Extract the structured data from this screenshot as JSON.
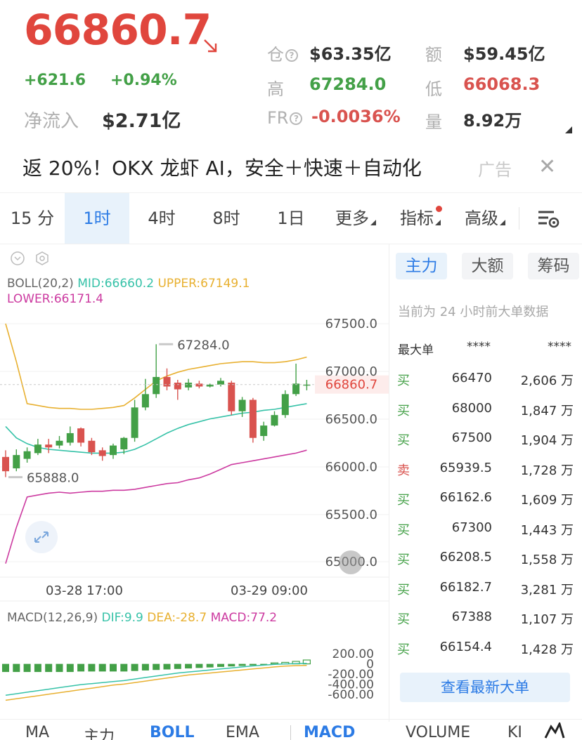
{
  "ticker": {
    "price": "66860.7",
    "change": "+621.6",
    "change_pct": "+0.94%",
    "net_inflow_label": "净流入",
    "net_inflow": "$2.71亿",
    "oi_label": "仓",
    "oi": "$63.35亿",
    "turnover_label": "额",
    "turnover": "$59.45亿",
    "high_label": "高",
    "high": "67284.0",
    "low_label": "低",
    "low": "66068.3",
    "fr_label": "FR",
    "fr": "-0.0036%",
    "vol_label": "量",
    "vol": "8.92万"
  },
  "ad": {
    "text": "返 20%！OKX 龙虾 AI，安全＋快速＋自动化",
    "tag": "广告",
    "close": "✕"
  },
  "interval_tabs": [
    "15 分",
    "1时",
    "4时",
    "8时",
    "1日",
    "更多",
    "指标",
    "高级"
  ],
  "active_interval": "1时",
  "boll_legend": {
    "name": "BOLL(20,2)",
    "mid": "MID:66660.2",
    "upper": "UPPER:67149.1",
    "lower": "LOWER:66171.4"
  },
  "macd_legend": {
    "name": "MACD(12,26,9)",
    "dif": "DIF:9.9",
    "dea": "DEA:-28.7",
    "macd": "MACD:77.2"
  },
  "price_axis": [
    "67500.0",
    "67000.0",
    "66500.0",
    "66000.0",
    "65500.0",
    "65000.0"
  ],
  "current_price_tag": "66860.7",
  "high_marker": "67284.0",
  "low_marker": "65888.0",
  "time_axis": [
    "03-28 17:00",
    "03-29 09:00"
  ],
  "macd_axis": [
    "200.00",
    "0",
    "-200.00",
    "-400.00",
    "-600.00"
  ],
  "colors": {
    "up": "#43a047",
    "down": "#d9534f",
    "mid_line": "#36c2a8",
    "upper_line": "#e8b030",
    "lower_line": "#cc3aa0",
    "accent": "#2c7be5"
  },
  "chart_data": {
    "type": "line",
    "candles": [
      {
        "o": 66100,
        "c": 65950,
        "h": 66170,
        "l": 65888
      },
      {
        "o": 65980,
        "c": 66120,
        "h": 66180,
        "l": 65950
      },
      {
        "o": 66080,
        "c": 66160,
        "h": 66200,
        "l": 66040
      },
      {
        "o": 66140,
        "c": 66230,
        "h": 66290,
        "l": 66120
      },
      {
        "o": 66230,
        "c": 66200,
        "h": 66290,
        "l": 66140
      },
      {
        "o": 66220,
        "c": 66270,
        "h": 66320,
        "l": 66190
      },
      {
        "o": 66250,
        "c": 66350,
        "h": 66420,
        "l": 66220
      },
      {
        "o": 66400,
        "c": 66250,
        "h": 66410,
        "l": 66210
      },
      {
        "o": 66270,
        "c": 66150,
        "h": 66300,
        "l": 66120
      },
      {
        "o": 66170,
        "c": 66110,
        "h": 66200,
        "l": 66060
      },
      {
        "o": 66120,
        "c": 66220,
        "h": 66240,
        "l": 66080
      },
      {
        "o": 66180,
        "c": 66300,
        "h": 66310,
        "l": 66130
      },
      {
        "o": 66300,
        "c": 66620,
        "h": 66700,
        "l": 66260
      },
      {
        "o": 66620,
        "c": 66760,
        "h": 66920,
        "l": 66590
      },
      {
        "o": 66760,
        "c": 66940,
        "h": 67284,
        "l": 66720
      },
      {
        "o": 66940,
        "c": 66840,
        "h": 67030,
        "l": 66800
      },
      {
        "o": 66880,
        "c": 66810,
        "h": 66910,
        "l": 66700
      },
      {
        "o": 66830,
        "c": 66880,
        "h": 66920,
        "l": 66800
      },
      {
        "o": 66870,
        "c": 66840,
        "h": 66900,
        "l": 66820
      },
      {
        "o": 66840,
        "c": 66860,
        "h": 66870,
        "l": 66830
      },
      {
        "o": 66860,
        "c": 66900,
        "h": 66930,
        "l": 66840
      },
      {
        "o": 66880,
        "c": 66580,
        "h": 66900,
        "l": 66540
      },
      {
        "o": 66580,
        "c": 66700,
        "h": 66730,
        "l": 66520
      },
      {
        "o": 66700,
        "c": 66300,
        "h": 66720,
        "l": 66250
      },
      {
        "o": 66320,
        "c": 66430,
        "h": 66470,
        "l": 66270
      },
      {
        "o": 66430,
        "c": 66540,
        "h": 66580,
        "l": 66420
      },
      {
        "o": 66540,
        "c": 66760,
        "h": 66800,
        "l": 66510
      },
      {
        "o": 66760,
        "c": 66870,
        "h": 67080,
        "l": 66740
      },
      {
        "o": 66860,
        "c": 66860,
        "h": 66910,
        "l": 66800
      }
    ],
    "boll_upper": [
      67500,
      67100,
      66660,
      66640,
      66620,
      66610,
      66610,
      66600,
      66600,
      66610,
      66620,
      66640,
      66720,
      66810,
      66900,
      66950,
      66990,
      67020,
      67040,
      67060,
      67080,
      67090,
      67100,
      67100,
      67090,
      67090,
      67100,
      67120,
      67149
    ],
    "boll_mid": [
      66420,
      66300,
      66240,
      66200,
      66180,
      66170,
      66160,
      66150,
      66140,
      66140,
      66140,
      66150,
      66180,
      66230,
      66290,
      66350,
      66400,
      66440,
      66470,
      66500,
      66520,
      66540,
      66560,
      66570,
      66590,
      66600,
      66620,
      66640,
      66660
    ],
    "boll_lower": [
      64980,
      65360,
      65680,
      65700,
      65720,
      65730,
      65720,
      65730,
      65740,
      65740,
      65750,
      65750,
      65760,
      65780,
      65800,
      65820,
      65830,
      65860,
      65880,
      65920,
      65970,
      66020,
      66040,
      66060,
      66080,
      66100,
      66120,
      66140,
      66171
    ],
    "macd_hist": [
      -160,
      -160,
      -160,
      -160,
      -160,
      -160,
      -160,
      -150,
      -150,
      -150,
      -150,
      -150,
      -140,
      -130,
      -120,
      -110,
      -100,
      -90,
      -80,
      -70,
      -60,
      -50,
      -40,
      -30,
      -20,
      20,
      30,
      50,
      77
    ],
    "dif": [
      -620,
      -590,
      -560,
      -530,
      -500,
      -470,
      -440,
      -410,
      -390,
      -370,
      -350,
      -330,
      -300,
      -270,
      -240,
      -210,
      -180,
      -160,
      -140,
      -120,
      -100,
      -80,
      -60,
      -40,
      -25,
      -10,
      0,
      5,
      9.9
    ],
    "dea": [
      -720,
      -690,
      -660,
      -630,
      -600,
      -570,
      -540,
      -510,
      -480,
      -450,
      -420,
      -400,
      -370,
      -340,
      -310,
      -280,
      -250,
      -220,
      -200,
      -180,
      -160,
      -140,
      -120,
      -100,
      -80,
      -60,
      -45,
      -35,
      -28.7
    ],
    "ylim": [
      65000,
      67650
    ],
    "macd_ylim": [
      -700,
      300
    ]
  },
  "panel": {
    "tabs": [
      "主力",
      "大额",
      "筹码"
    ],
    "active_tab": "主力",
    "note": "当前为 24 小时前大单数据",
    "header_label": "最大单",
    "header_price": "****",
    "header_amount": "****",
    "rows": [
      {
        "side": "买",
        "price": "66470",
        "amount": "2,606 万"
      },
      {
        "side": "买",
        "price": "68000",
        "amount": "1,847 万"
      },
      {
        "side": "买",
        "price": "67500",
        "amount": "1,904 万"
      },
      {
        "side": "卖",
        "price": "65939.5",
        "amount": "1,728 万"
      },
      {
        "side": "买",
        "price": "66162.6",
        "amount": "1,609 万"
      },
      {
        "side": "买",
        "price": "67300",
        "amount": "1,443 万"
      },
      {
        "side": "买",
        "price": "66208.5",
        "amount": "1,558 万"
      },
      {
        "side": "买",
        "price": "66182.7",
        "amount": "3,281 万"
      },
      {
        "side": "买",
        "price": "67388",
        "amount": "1,107 万"
      },
      {
        "side": "买",
        "price": "66154.4",
        "amount": "1,428 万"
      }
    ],
    "more_button": "查看最新大单"
  },
  "bottom_tabs": [
    "MA",
    "主力",
    "BOLL",
    "EMA",
    "MACD",
    "VOLUME",
    "KI"
  ],
  "active_bottom": [
    "BOLL",
    "MACD"
  ]
}
